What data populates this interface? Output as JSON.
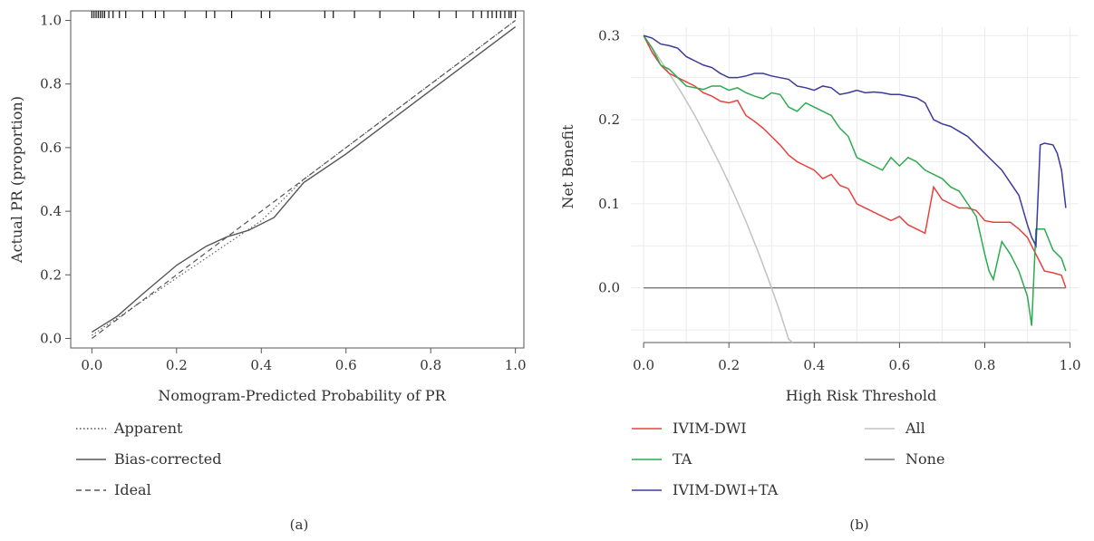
{
  "chart_data": [
    {
      "type": "line",
      "panel_label": "(a)",
      "xlabel": "Nomogram-Predicted Probability of PR",
      "ylabel": "Actual PR (proportion)",
      "xlim": [
        -0.05,
        1.02
      ],
      "ylim": [
        -0.03,
        1.03
      ],
      "xticks": [
        0.0,
        0.2,
        0.4,
        0.6,
        0.8,
        1.0
      ],
      "xtick_labels": [
        "0.0",
        "0.2",
        "0.4",
        "0.6",
        "0.8",
        "1.0"
      ],
      "yticks": [
        0.0,
        0.2,
        0.4,
        0.6,
        0.8,
        1.0
      ],
      "ytick_labels": [
        "0.0",
        "0.2",
        "0.4",
        "0.6",
        "0.8",
        "1.0"
      ],
      "legend_position": "bottom-left",
      "rug_x": [
        0.0,
        0.005,
        0.01,
        0.015,
        0.02,
        0.025,
        0.03,
        0.04,
        0.05,
        0.065,
        0.08,
        0.12,
        0.15,
        0.17,
        0.22,
        0.27,
        0.29,
        0.33,
        0.4,
        0.42,
        0.55,
        0.57,
        0.62,
        0.68,
        0.76,
        0.82,
        0.86,
        0.9,
        0.92,
        0.935,
        0.945,
        0.955,
        0.965,
        0.975,
        0.985,
        0.99,
        1.0
      ],
      "series": [
        {
          "name": "Apparent",
          "style": "dotted",
          "x": [
            0.0,
            0.1,
            0.2,
            0.3,
            0.4,
            0.5,
            0.6,
            0.7,
            0.8,
            0.9,
            1.0
          ],
          "y": [
            0.01,
            0.1,
            0.19,
            0.28,
            0.37,
            0.5,
            0.6,
            0.7,
            0.8,
            0.9,
            1.0
          ]
        },
        {
          "name": "Bias-corrected",
          "style": "solid",
          "x": [
            0.0,
            0.06,
            0.12,
            0.2,
            0.27,
            0.32,
            0.37,
            0.43,
            0.5,
            0.6,
            0.7,
            0.8,
            0.9,
            1.0
          ],
          "y": [
            0.02,
            0.07,
            0.14,
            0.23,
            0.29,
            0.32,
            0.34,
            0.38,
            0.49,
            0.58,
            0.68,
            0.78,
            0.88,
            0.98
          ]
        },
        {
          "name": "Ideal",
          "style": "dashed",
          "x": [
            0.0,
            1.0
          ],
          "y": [
            0.0,
            1.0
          ]
        }
      ]
    },
    {
      "type": "line",
      "panel_label": "(b)",
      "xlabel": "High Risk Threshold",
      "ylabel": "Net Benefit",
      "xlim": [
        -0.03,
        1.02
      ],
      "ylim": [
        -0.065,
        0.31
      ],
      "xticks": [
        0.0,
        0.2,
        0.4,
        0.6,
        0.8,
        1.0
      ],
      "xtick_labels": [
        "0.0",
        "0.2",
        "0.4",
        "0.6",
        "0.8",
        "1.0"
      ],
      "yticks": [
        0.0,
        0.1,
        0.2,
        0.3
      ],
      "ytick_labels": [
        "0.0",
        "0.1",
        "0.2",
        "0.3"
      ],
      "grid": true,
      "legend_position": "bottom",
      "series": [
        {
          "name": "IVIM-DWI",
          "color": "#e5433e",
          "x": [
            0.0,
            0.02,
            0.04,
            0.06,
            0.08,
            0.1,
            0.12,
            0.14,
            0.16,
            0.18,
            0.2,
            0.22,
            0.24,
            0.26,
            0.28,
            0.3,
            0.32,
            0.34,
            0.36,
            0.38,
            0.4,
            0.42,
            0.44,
            0.46,
            0.48,
            0.5,
            0.52,
            0.54,
            0.56,
            0.58,
            0.6,
            0.62,
            0.64,
            0.66,
            0.68,
            0.7,
            0.72,
            0.74,
            0.76,
            0.78,
            0.8,
            0.82,
            0.84,
            0.86,
            0.88,
            0.9,
            0.92,
            0.94,
            0.96,
            0.98,
            0.99
          ],
          "y": [
            0.3,
            0.28,
            0.265,
            0.255,
            0.25,
            0.245,
            0.24,
            0.232,
            0.228,
            0.222,
            0.22,
            0.223,
            0.205,
            0.198,
            0.19,
            0.18,
            0.17,
            0.158,
            0.15,
            0.145,
            0.14,
            0.13,
            0.135,
            0.122,
            0.118,
            0.1,
            0.095,
            0.09,
            0.085,
            0.08,
            0.085,
            0.075,
            0.07,
            0.065,
            0.12,
            0.105,
            0.1,
            0.095,
            0.095,
            0.092,
            0.08,
            0.078,
            0.078,
            0.078,
            0.07,
            0.06,
            0.04,
            0.02,
            0.018,
            0.015,
            0.0
          ]
        },
        {
          "name": "TA",
          "color": "#2eaa4f",
          "x": [
            0.0,
            0.02,
            0.04,
            0.06,
            0.08,
            0.1,
            0.12,
            0.14,
            0.16,
            0.18,
            0.2,
            0.22,
            0.24,
            0.26,
            0.28,
            0.3,
            0.32,
            0.34,
            0.36,
            0.38,
            0.4,
            0.42,
            0.44,
            0.46,
            0.48,
            0.5,
            0.52,
            0.54,
            0.56,
            0.58,
            0.6,
            0.62,
            0.64,
            0.66,
            0.68,
            0.7,
            0.72,
            0.74,
            0.76,
            0.78,
            0.8,
            0.81,
            0.82,
            0.84,
            0.86,
            0.88,
            0.9,
            0.91,
            0.92,
            0.94,
            0.96,
            0.98,
            0.99
          ],
          "y": [
            0.3,
            0.285,
            0.265,
            0.26,
            0.25,
            0.24,
            0.238,
            0.236,
            0.24,
            0.24,
            0.235,
            0.238,
            0.232,
            0.228,
            0.225,
            0.232,
            0.23,
            0.215,
            0.21,
            0.22,
            0.215,
            0.21,
            0.205,
            0.19,
            0.18,
            0.155,
            0.15,
            0.145,
            0.14,
            0.155,
            0.145,
            0.155,
            0.15,
            0.14,
            0.135,
            0.13,
            0.12,
            0.115,
            0.1,
            0.085,
            0.04,
            0.02,
            0.01,
            0.055,
            0.04,
            0.02,
            -0.01,
            -0.045,
            0.07,
            0.07,
            0.045,
            0.035,
            0.02
          ]
        },
        {
          "name": "IVIM-DWI+TA",
          "color": "#3b3b9a",
          "x": [
            0.0,
            0.02,
            0.04,
            0.06,
            0.08,
            0.1,
            0.12,
            0.14,
            0.16,
            0.18,
            0.2,
            0.22,
            0.24,
            0.26,
            0.28,
            0.3,
            0.32,
            0.34,
            0.36,
            0.38,
            0.4,
            0.42,
            0.44,
            0.46,
            0.48,
            0.5,
            0.52,
            0.54,
            0.56,
            0.58,
            0.6,
            0.62,
            0.64,
            0.66,
            0.68,
            0.7,
            0.72,
            0.74,
            0.76,
            0.78,
            0.8,
            0.82,
            0.84,
            0.86,
            0.88,
            0.9,
            0.91,
            0.92,
            0.93,
            0.94,
            0.96,
            0.97,
            0.98,
            0.99
          ],
          "y": [
            0.3,
            0.297,
            0.29,
            0.288,
            0.285,
            0.275,
            0.27,
            0.265,
            0.262,
            0.255,
            0.25,
            0.25,
            0.252,
            0.255,
            0.255,
            0.252,
            0.25,
            0.248,
            0.24,
            0.238,
            0.235,
            0.24,
            0.238,
            0.23,
            0.232,
            0.235,
            0.232,
            0.233,
            0.232,
            0.23,
            0.23,
            0.228,
            0.226,
            0.22,
            0.2,
            0.195,
            0.192,
            0.186,
            0.18,
            0.17,
            0.16,
            0.15,
            0.14,
            0.125,
            0.11,
            0.075,
            0.06,
            0.05,
            0.17,
            0.172,
            0.17,
            0.16,
            0.14,
            0.095
          ]
        },
        {
          "name": "All",
          "color": "#c2c2c2",
          "x": [
            0.0,
            0.03,
            0.06,
            0.09,
            0.12,
            0.15,
            0.18,
            0.21,
            0.24,
            0.27,
            0.3,
            0.32,
            0.34,
            0.35
          ],
          "y": [
            0.3,
            0.278,
            0.255,
            0.231,
            0.205,
            0.176,
            0.146,
            0.114,
            0.079,
            0.041,
            0.0,
            -0.029,
            -0.061,
            -0.077
          ]
        },
        {
          "name": "None",
          "color": "#777777",
          "x": [
            0.0,
            0.99
          ],
          "y": [
            0.0,
            0.0
          ]
        }
      ]
    }
  ],
  "legend_a": [
    {
      "label": "Apparent",
      "style": "dotted"
    },
    {
      "label": "Bias-corrected",
      "style": "solid"
    },
    {
      "label": "Ideal",
      "style": "dashed"
    }
  ],
  "legend_b": [
    {
      "label": "IVIM-DWI",
      "color": "#e5433e"
    },
    {
      "label": "TA",
      "color": "#2eaa4f"
    },
    {
      "label": "IVIM-DWI+TA",
      "color": "#3b3b9a"
    },
    {
      "label": "All",
      "color": "#c2c2c2"
    },
    {
      "label": "None",
      "color": "#777777"
    }
  ]
}
